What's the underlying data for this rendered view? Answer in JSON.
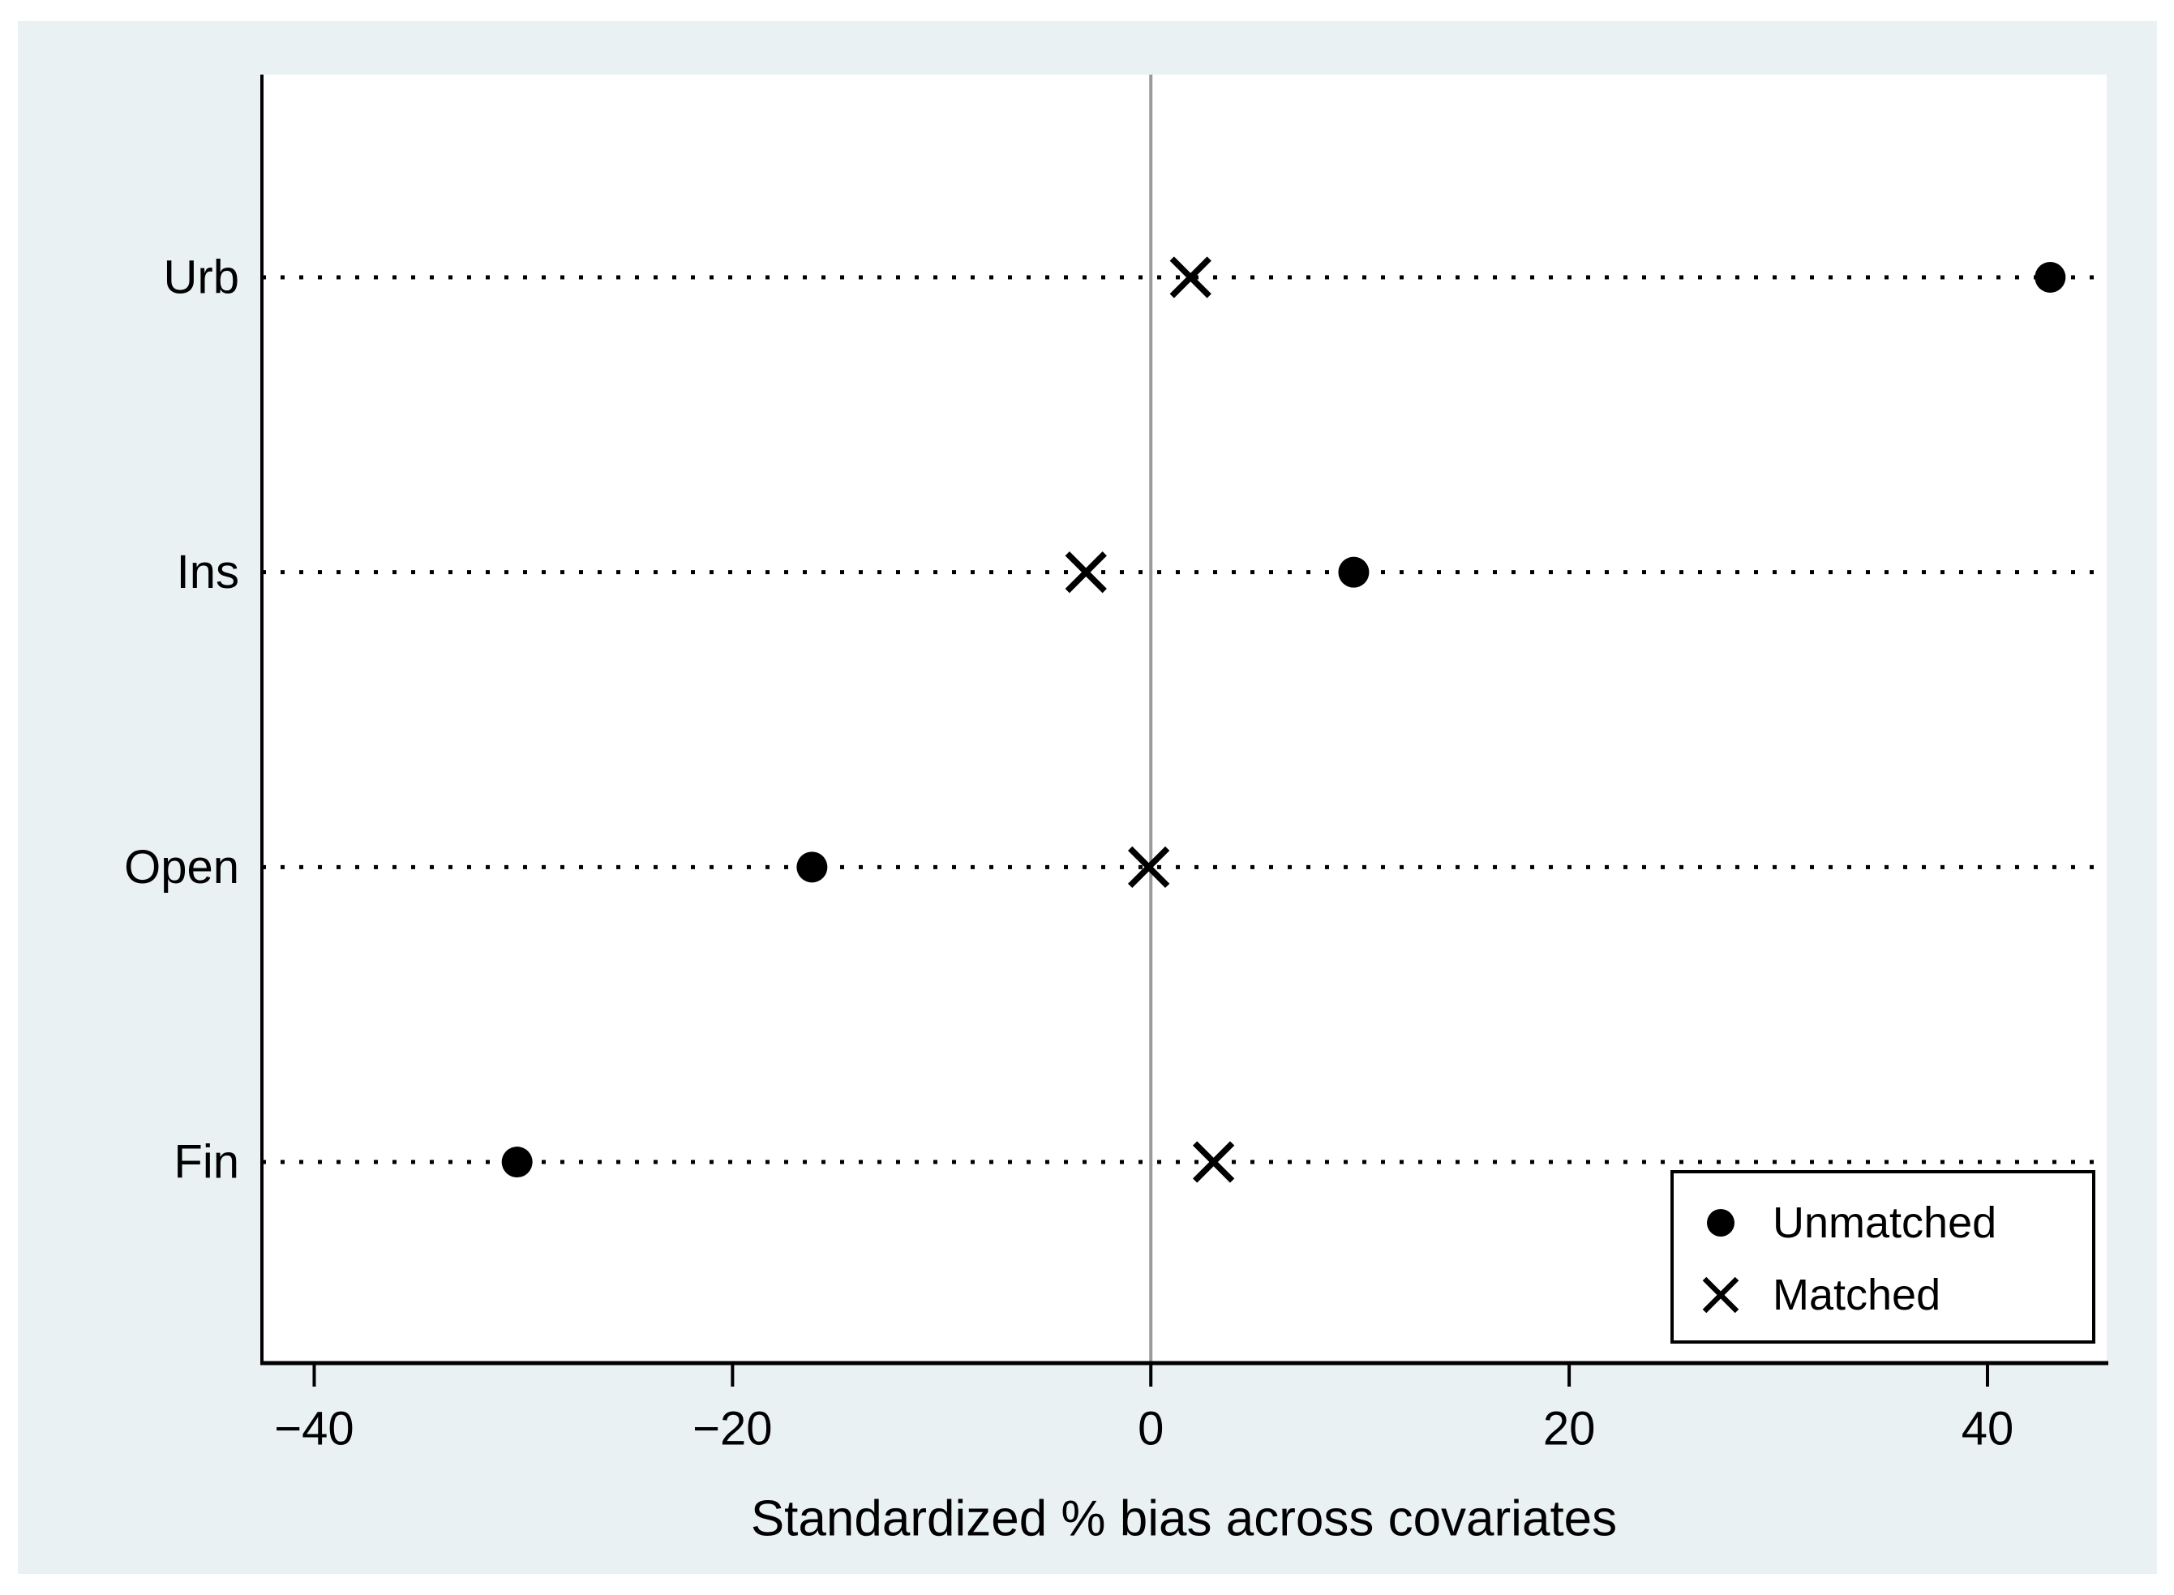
{
  "chart_data": {
    "type": "scatter",
    "title": "",
    "xlabel": "Standardized % bias across covariates",
    "ylabel": "",
    "categories": [
      "Urb",
      "Ins",
      "Open",
      "Fin"
    ],
    "series": [
      {
        "name": "Unmatched",
        "marker": "filled-circle",
        "values": [
          43.0,
          9.7,
          -16.2,
          -30.3
        ]
      },
      {
        "name": "Matched",
        "marker": "x-cross",
        "values": [
          1.9,
          -3.1,
          -0.1,
          3.0
        ]
      }
    ],
    "x_ticks": [
      -40,
      -20,
      0,
      20,
      40
    ],
    "x_tick_labels": [
      "−40",
      "−20",
      "0",
      "20",
      "40"
    ],
    "xlim": [
      -42.5,
      45.7
    ],
    "zero_reference_line": 0,
    "grid": "dotted horizontal line per category, zero vertical reference line",
    "legend_position": "bottom-right inside plot",
    "colors": {
      "marker": "#000000",
      "axis": "#000000",
      "zero_line": "#9a9a9a",
      "canvas_bg": "#eaf1f3",
      "plot_bg": "#ffffff",
      "page_bg": "#ffffff"
    }
  }
}
